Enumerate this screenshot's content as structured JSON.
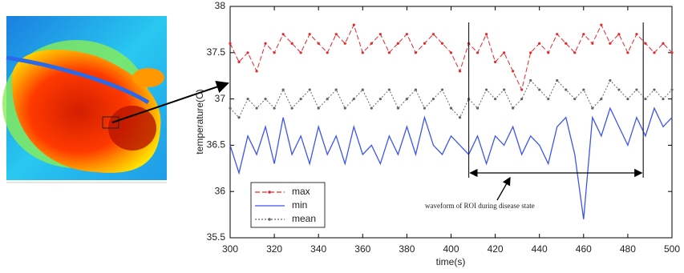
{
  "chart_data": {
    "type": "line",
    "xlabel": "time(s)",
    "ylabel": "temperature(C)",
    "annotation": "waveform of ROI during disease state",
    "vlines": [
      408,
      487
    ],
    "xlim": [
      300,
      500
    ],
    "xticks": [
      300,
      320,
      340,
      360,
      380,
      400,
      420,
      440,
      460,
      480,
      500
    ],
    "ylim": [
      35.5,
      38
    ],
    "yticks": [
      35.5,
      36,
      36.5,
      37,
      37.5,
      38
    ],
    "grid": false,
    "legend": "lower left",
    "x": [
      300,
      304,
      308,
      312,
      316,
      320,
      324,
      328,
      332,
      336,
      340,
      344,
      348,
      352,
      356,
      360,
      364,
      368,
      372,
      376,
      380,
      384,
      388,
      392,
      396,
      400,
      404,
      408,
      412,
      416,
      420,
      424,
      428,
      432,
      436,
      440,
      444,
      448,
      452,
      456,
      460,
      464,
      468,
      472,
      476,
      480,
      484,
      488,
      492,
      496,
      500
    ],
    "series": [
      {
        "name": "max",
        "color": "#e8262a",
        "style": "dashed",
        "marker": true,
        "values": [
          37.6,
          37.4,
          37.5,
          37.3,
          37.6,
          37.5,
          37.7,
          37.6,
          37.5,
          37.7,
          37.6,
          37.5,
          37.7,
          37.6,
          37.8,
          37.5,
          37.6,
          37.7,
          37.5,
          37.6,
          37.7,
          37.5,
          37.6,
          37.7,
          37.6,
          37.5,
          37.3,
          37.6,
          37.5,
          37.7,
          37.4,
          37.5,
          37.3,
          37.1,
          37.5,
          37.6,
          37.5,
          37.7,
          37.6,
          37.5,
          37.7,
          37.6,
          37.8,
          37.6,
          37.7,
          37.5,
          37.7,
          37.6,
          37.5,
          37.6,
          37.5
        ]
      },
      {
        "name": "min",
        "color": "#3b55ee",
        "style": "solid",
        "marker": false,
        "values": [
          36.5,
          36.2,
          36.6,
          36.4,
          36.7,
          36.3,
          36.8,
          36.4,
          36.6,
          36.3,
          36.7,
          36.4,
          36.6,
          36.3,
          36.7,
          36.4,
          36.5,
          36.3,
          36.6,
          36.4,
          36.7,
          36.4,
          36.8,
          36.5,
          36.4,
          36.6,
          36.5,
          36.4,
          36.6,
          36.3,
          36.6,
          36.5,
          36.7,
          36.4,
          36.6,
          36.5,
          36.3,
          36.7,
          36.8,
          36.4,
          35.7,
          36.8,
          36.6,
          36.9,
          36.7,
          36.5,
          36.8,
          36.6,
          36.9,
          36.7,
          36.8
        ]
      },
      {
        "name": "mean",
        "color": "#666666",
        "style": "dotted",
        "marker": true,
        "values": [
          36.9,
          36.8,
          37.0,
          36.9,
          37.0,
          36.9,
          37.1,
          36.9,
          37.0,
          37.1,
          36.9,
          37.0,
          37.1,
          36.9,
          37.0,
          37.1,
          36.9,
          37.0,
          37.1,
          36.9,
          37.0,
          37.1,
          36.9,
          37.0,
          37.1,
          36.9,
          36.8,
          37.0,
          36.9,
          37.1,
          37.0,
          37.1,
          36.9,
          37.0,
          37.2,
          37.1,
          37.0,
          37.2,
          37.1,
          37.0,
          37.1,
          36.9,
          37.0,
          37.2,
          37.1,
          37.0,
          37.1,
          37.0,
          37.1,
          37.0,
          37.1
        ]
      }
    ]
  }
}
